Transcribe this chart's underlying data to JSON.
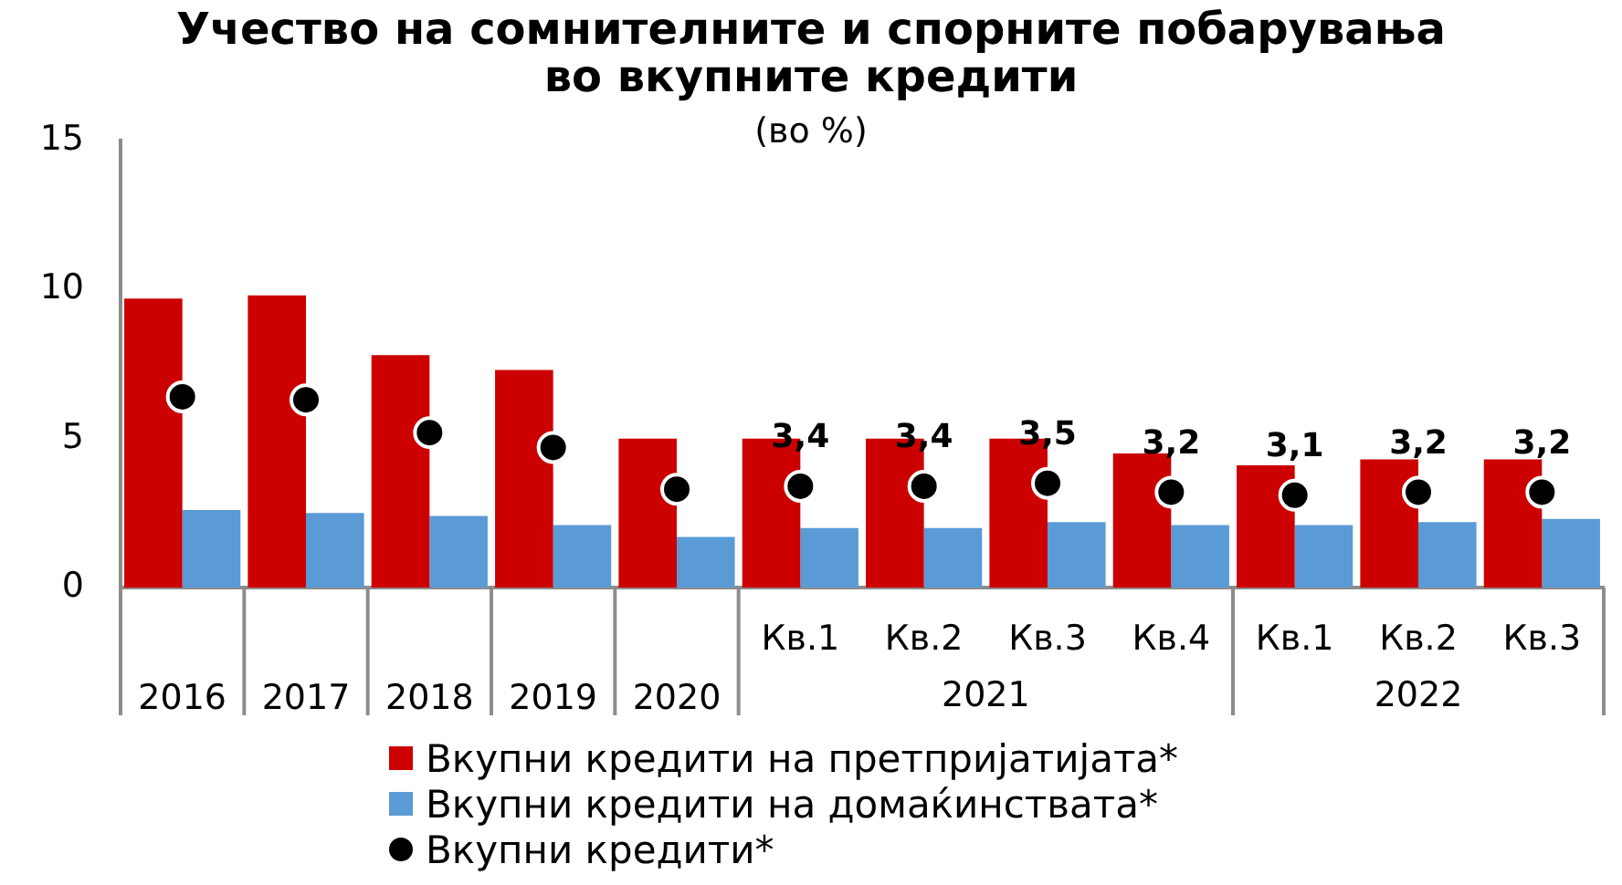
{
  "chart_data": {
    "type": "bar",
    "title": "Учество на сомнителните и спорните побарувања во вкупните кредити",
    "subtitle": "(во %)",
    "categories": [
      "2016",
      "2017",
      "2018",
      "2019",
      "2020",
      "Кв.1",
      "Кв.2",
      "Кв.3",
      "Кв.4",
      "Кв.1",
      "Кв.2",
      "Кв.3"
    ],
    "annotations": [
      "2021",
      "2022"
    ],
    "series": [
      {
        "name": "Вкупни кредити на претпријатијата*",
        "color": "#cc0000",
        "values": [
          9.7,
          9.8,
          7.8,
          7.3,
          5.0,
          5.0,
          5.0,
          5.0,
          4.5,
          4.1,
          4.3,
          4.3
        ]
      },
      {
        "name": "Вкупни кредити на домаќинствата*",
        "color": "#5b9bd5",
        "values": [
          2.6,
          2.5,
          2.4,
          2.1,
          1.7,
          2.0,
          2.0,
          2.2,
          2.1,
          2.1,
          2.2,
          2.3
        ]
      },
      {
        "name": "Вкупни кредити*",
        "type": "scatter",
        "color": "#000000",
        "values": [
          6.4,
          6.3,
          5.2,
          4.7,
          3.3,
          3.4,
          3.4,
          3.5,
          3.2,
          3.1,
          3.2,
          3.2
        ],
        "value_labels": [
          null,
          null,
          null,
          null,
          null,
          "3,4",
          "3,4",
          "3,5",
          "3,2",
          "3,1",
          "3,2",
          "3,2"
        ]
      }
    ],
    "ylim": [
      0,
      15
    ],
    "yticks": [
      0,
      5,
      10,
      15
    ],
    "grid": false,
    "legend": "bottom",
    "marker": "circle"
  }
}
